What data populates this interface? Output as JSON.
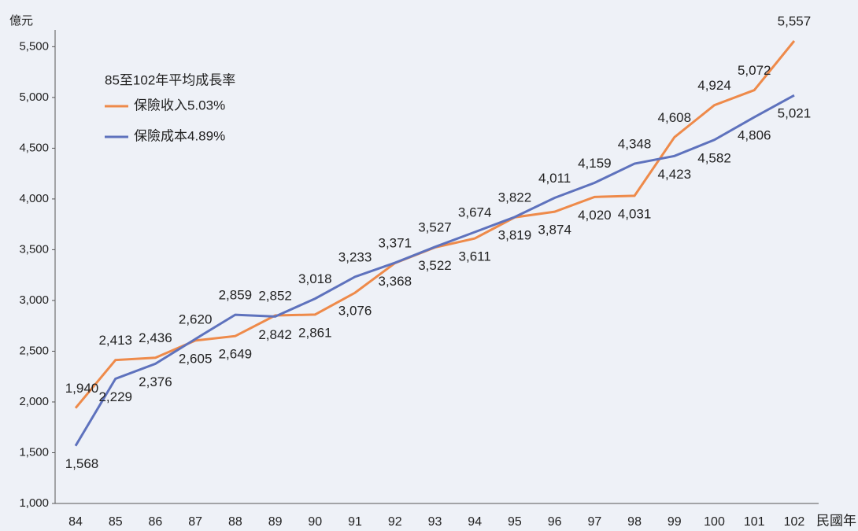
{
  "chart_data": {
    "type": "line",
    "y_label": "億元",
    "x_label": "民國年",
    "legend_title": "85至102年平均成長率",
    "categories": [
      "84",
      "85",
      "86",
      "87",
      "88",
      "89",
      "90",
      "91",
      "92",
      "93",
      "94",
      "95",
      "96",
      "97",
      "98",
      "99",
      "100",
      "101",
      "102"
    ],
    "series": [
      {
        "name": "保險收入5.03%",
        "color": "#ee8a4a",
        "values": [
          1940,
          2413,
          2436,
          2605,
          2649,
          2852,
          2861,
          3076,
          3368,
          3522,
          3611,
          3819,
          3874,
          4020,
          4031,
          4608,
          4924,
          5072,
          5557
        ],
        "value_labels": [
          "1,940",
          "2,413",
          "2,436",
          "2,605",
          "2,649",
          "2,852",
          "2,861",
          "3,076",
          "3,368",
          "3,522",
          "3,611",
          "3,819",
          "3,874",
          "4,020",
          "4,031",
          "4,608",
          "4,924",
          "5,072",
          "5,557"
        ]
      },
      {
        "name": "保險成本4.89%",
        "color": "#5e72bd",
        "values": [
          1568,
          2229,
          2376,
          2620,
          2859,
          2842,
          3018,
          3233,
          3371,
          3527,
          3674,
          3822,
          4011,
          4159,
          4348,
          4423,
          4582,
          4806,
          5021
        ],
        "value_labels": [
          "1,568",
          "2,229",
          "2,376",
          "2,620",
          "2,859",
          "2,842",
          "3,018",
          "3,233",
          "3,371",
          "3,527",
          "3,674",
          "3,822",
          "4,011",
          "4,159",
          "4,348",
          "4,423",
          "4,582",
          "4,806",
          "5,021"
        ]
      }
    ],
    "ylim": [
      1000,
      5650
    ],
    "yticks": [
      {
        "value": 1000,
        "label": "1,000"
      },
      {
        "value": 1500,
        "label": "1,500"
      },
      {
        "value": 2000,
        "label": "2,000"
      },
      {
        "value": 2500,
        "label": "2,500"
      },
      {
        "value": 3000,
        "label": "3,000"
      },
      {
        "value": 3500,
        "label": "3,500"
      },
      {
        "value": 4000,
        "label": "4,000"
      },
      {
        "value": 4500,
        "label": "4,500"
      },
      {
        "value": 5000,
        "label": "5,000"
      },
      {
        "value": 5500,
        "label": "5,500"
      }
    ],
    "legend": "upper left"
  }
}
